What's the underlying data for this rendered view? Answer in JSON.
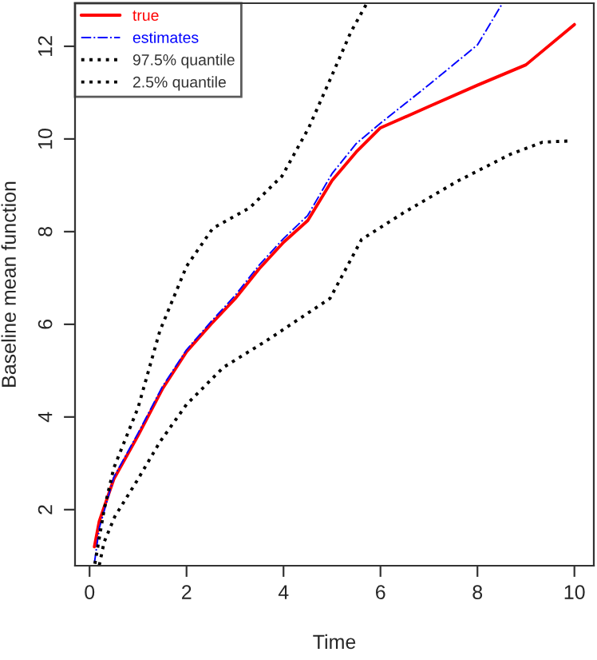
{
  "chart_data": {
    "type": "line",
    "xlabel": "Time",
    "ylabel": "Baseline mean function",
    "xlim": [
      -0.3,
      10.4
    ],
    "ylim": [
      0.79,
      12.93
    ],
    "xticks": [
      0,
      2,
      4,
      6,
      8,
      10
    ],
    "yticks": [
      2,
      4,
      6,
      8,
      10,
      12
    ],
    "grid": false,
    "legend": "top left",
    "marker": "none",
    "series": [
      {
        "name": "true",
        "color": "#ff0000",
        "line_style": "solid",
        "x": [
          0.1,
          0.2,
          0.5,
          1,
          1.5,
          2,
          2.5,
          3,
          3.5,
          4,
          4.5,
          5,
          5.5,
          6,
          7,
          8,
          9,
          10
        ],
        "values": [
          1.2,
          1.75,
          2.66,
          3.6,
          4.6,
          5.41,
          6.0,
          6.55,
          7.2,
          7.77,
          8.24,
          9.1,
          9.72,
          10.24,
          10.7,
          11.16,
          11.6,
          12.47
        ]
      },
      {
        "name": "estimates",
        "color": "#0000ff",
        "line_style": "dashdot",
        "x": [
          0.1,
          0.2,
          0.5,
          1,
          1.5,
          2,
          2.5,
          3,
          3.5,
          4,
          4.5,
          5,
          5.5,
          6,
          7,
          8,
          8.5
        ],
        "values": [
          0.85,
          1.6,
          2.7,
          3.65,
          4.65,
          5.45,
          6.05,
          6.62,
          7.28,
          7.85,
          8.35,
          9.25,
          9.9,
          10.34,
          11.17,
          12.03,
          12.9
        ]
      },
      {
        "name": "97.5% quantile",
        "color": "#000000",
        "line_style": "dotted",
        "x": [
          0.11,
          0.3,
          0.5,
          1.0,
          1.45,
          2.0,
          2.54,
          3.31,
          3.97,
          4.52,
          4.96,
          5.39,
          5.72
        ],
        "values": [
          0.83,
          2.0,
          2.9,
          4.2,
          5.86,
          7.25,
          8.07,
          8.52,
          9.2,
          10.24,
          11.28,
          12.31,
          12.93
        ]
      },
      {
        "name": "2.5% quantile",
        "color": "#000000",
        "line_style": "dotted",
        "x": [
          0.2,
          0.3,
          0.52,
          1.0,
          1.45,
          2.0,
          2.76,
          3.64,
          4.3,
          4.96,
          5.61,
          6.48,
          7.59,
          8.68,
          9.34,
          9.95
        ],
        "values": [
          0.8,
          1.3,
          1.85,
          2.66,
          3.46,
          4.27,
          5.07,
          5.64,
          6.1,
          6.56,
          7.83,
          8.41,
          9.09,
          9.67,
          9.93,
          9.96
        ]
      }
    ]
  }
}
